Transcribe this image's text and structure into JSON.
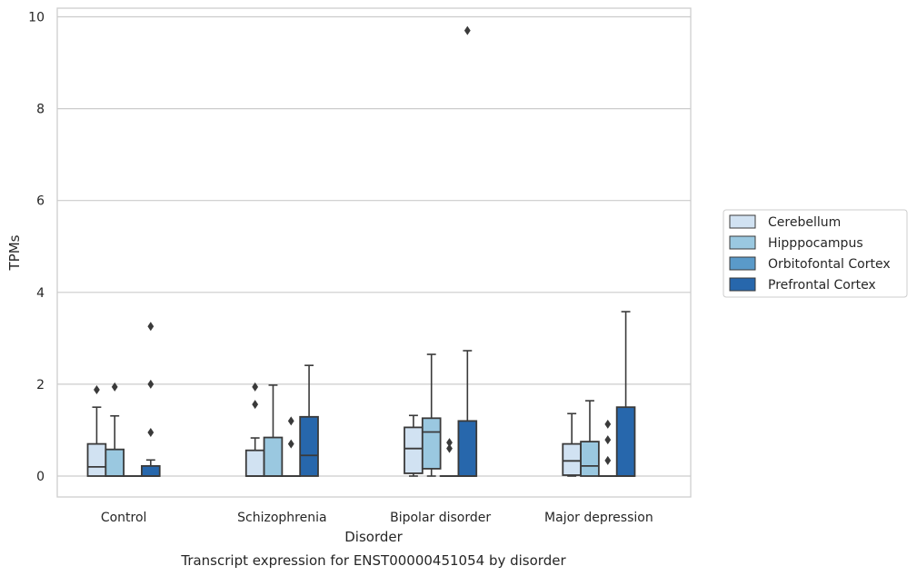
{
  "chart_data": {
    "type": "box",
    "title": "",
    "caption": "Transcript expression for ENST00000451054 by disorder",
    "xlabel": "Disorder",
    "ylabel": "TPMs",
    "ylim": [
      -0.45,
      10.2
    ],
    "yticks": [
      0,
      2,
      4,
      6,
      8,
      10
    ],
    "grid": true,
    "legend_position": "right",
    "categories": [
      "Control",
      "Schizophrenia",
      "Bipolar disorder",
      "Major depression"
    ],
    "series": [
      {
        "name": "Cerebellum",
        "color": "#d1e2f2",
        "boxes": [
          {
            "whisker_low": 0,
            "q1": 0,
            "median": 0.2,
            "q3": 0.7,
            "whisker_high": 1.5,
            "outliers": [
              1.88
            ]
          },
          {
            "whisker_low": 0,
            "q1": 0,
            "median": 0,
            "q3": 0.56,
            "whisker_high": 0.83,
            "outliers": [
              1.56,
              1.94
            ]
          },
          {
            "whisker_low": 0,
            "q1": 0.06,
            "median": 0.6,
            "q3": 1.06,
            "whisker_high": 1.32,
            "outliers": []
          },
          {
            "whisker_low": 0,
            "q1": 0.02,
            "median": 0.33,
            "q3": 0.7,
            "whisker_high": 1.36,
            "outliers": []
          }
        ]
      },
      {
        "name": "Hipppocampus",
        "color": "#9ac8e0",
        "boxes": [
          {
            "whisker_low": 0,
            "q1": 0,
            "median": 0,
            "q3": 0.58,
            "whisker_high": 1.31,
            "outliers": [
              1.94
            ]
          },
          {
            "whisker_low": 0,
            "q1": 0,
            "median": 0,
            "q3": 0.84,
            "whisker_high": 1.98,
            "outliers": []
          },
          {
            "whisker_low": 0,
            "q1": 0.16,
            "median": 0.96,
            "q3": 1.26,
            "whisker_high": 2.65,
            "outliers": []
          },
          {
            "whisker_low": 0,
            "q1": 0,
            "median": 0.22,
            "q3": 0.75,
            "whisker_high": 1.64,
            "outliers": []
          }
        ]
      },
      {
        "name": "Orbitofontal Cortex",
        "color": "#5a9ac9",
        "boxes": [
          {
            "whisker_low": 0,
            "q1": 0,
            "median": 0,
            "q3": 0,
            "whisker_high": 0,
            "outliers": []
          },
          {
            "whisker_low": 0,
            "q1": 0,
            "median": 0,
            "q3": 0,
            "whisker_high": 0,
            "outliers": [
              0.7,
              1.2
            ]
          },
          {
            "whisker_low": 0,
            "q1": 0,
            "median": 0,
            "q3": 0,
            "whisker_high": 0,
            "outliers": [
              0.6,
              0.73
            ]
          },
          {
            "whisker_low": 0,
            "q1": 0,
            "median": 0,
            "q3": 0,
            "whisker_high": 0,
            "outliers": [
              0.34,
              0.79,
              1.13
            ]
          }
        ]
      },
      {
        "name": "Prefrontal Cortex",
        "color": "#2767ac",
        "boxes": [
          {
            "whisker_low": 0,
            "q1": 0,
            "median": 0,
            "q3": 0.22,
            "whisker_high": 0.35,
            "outliers": [
              0.95,
              2.0,
              3.26
            ]
          },
          {
            "whisker_low": 0,
            "q1": 0,
            "median": 0.45,
            "q3": 1.29,
            "whisker_high": 2.41,
            "outliers": []
          },
          {
            "whisker_low": 0,
            "q1": 0,
            "median": 0,
            "q3": 1.2,
            "whisker_high": 2.73,
            "outliers": [
              9.7
            ]
          },
          {
            "whisker_low": 0,
            "q1": 0,
            "median": 0,
            "q3": 1.5,
            "whisker_high": 3.58,
            "outliers": []
          }
        ]
      }
    ]
  }
}
